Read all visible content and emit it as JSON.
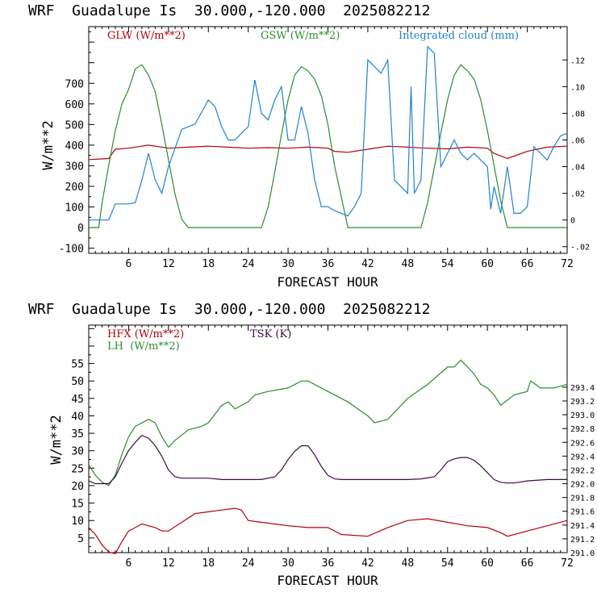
{
  "chart_data": [
    {
      "type": "line",
      "title": "WRF  Guadalupe Is  30.000,-120.000  2025082212",
      "xlabel": "FORECAST HOUR",
      "ylabel": "W/m**2",
      "xlim": [
        0,
        72
      ],
      "x_ticks": [
        "6",
        "12",
        "18",
        "24",
        "30",
        "36",
        "42",
        "48",
        "54",
        "60",
        "66",
        "72"
      ],
      "ylim": [
        -125,
        975
      ],
      "y_ticks": [
        "-100",
        "0",
        "100",
        "200",
        "300",
        "400",
        "500",
        "600",
        "700"
      ],
      "ylim_right": [
        -0.025,
        0.145
      ],
      "y_right_ticks": [
        "-.02",
        "0",
        ".02",
        ".04",
        ".06",
        ".08",
        ".10",
        ".12"
      ],
      "series": [
        {
          "name": "GLW (W/m**2)",
          "axis": "left",
          "color": "#b3000c",
          "x": [
            0,
            3,
            4,
            6,
            8,
            9,
            12,
            15,
            18,
            21,
            24,
            27,
            30,
            33,
            36,
            37,
            39,
            42,
            45,
            48,
            51,
            54,
            57,
            60,
            61,
            63,
            66,
            69,
            72
          ],
          "y": [
            330,
            335,
            380,
            385,
            395,
            400,
            385,
            390,
            395,
            390,
            385,
            388,
            385,
            390,
            385,
            370,
            365,
            380,
            395,
            390,
            385,
            382,
            390,
            385,
            360,
            335,
            370,
            390,
            395
          ]
        },
        {
          "name": "GSW (W/m**2)",
          "axis": "left",
          "color": "#2e8b2e",
          "x": [
            0,
            1.5,
            2,
            3,
            4,
            5,
            6,
            7,
            8,
            9,
            10,
            11,
            12,
            13,
            14,
            15,
            26,
            27,
            28,
            29,
            30,
            31,
            32,
            33,
            34,
            35,
            36,
            37,
            38,
            39,
            50,
            51,
            52,
            53,
            54,
            55,
            56,
            57,
            58,
            59,
            60,
            61,
            62,
            63,
            72
          ],
          "y": [
            0,
            0,
            120,
            300,
            470,
            600,
            670,
            770,
            790,
            740,
            660,
            500,
            330,
            160,
            40,
            0,
            0,
            100,
            270,
            450,
            620,
            740,
            780,
            760,
            720,
            640,
            500,
            300,
            150,
            0,
            0,
            120,
            290,
            460,
            620,
            740,
            790,
            760,
            720,
            620,
            470,
            300,
            130,
            0,
            0
          ]
        },
        {
          "name": "Integrated cloud (mm)",
          "axis": "right",
          "color": "#1e82d2",
          "x": [
            0,
            3,
            4,
            5,
            6,
            7,
            8,
            9,
            10,
            11,
            12,
            14,
            16,
            18,
            19,
            20,
            21,
            22,
            23,
            24,
            25,
            26,
            27,
            28,
            29,
            30,
            31,
            32,
            33,
            34,
            35,
            36,
            37,
            38,
            39,
            40,
            41,
            42,
            43,
            44,
            45,
            46,
            47,
            48,
            48.5,
            49,
            50,
            51,
            52,
            53,
            54,
            55,
            56,
            57,
            58,
            59,
            60,
            60.5,
            61,
            62,
            63,
            64,
            65,
            66,
            67,
            68,
            69,
            70,
            71,
            72
          ],
          "y": [
            0,
            0,
            0.012,
            0.012,
            0.012,
            0.013,
            0.03,
            0.05,
            0.03,
            0.02,
            0.04,
            0.068,
            0.072,
            0.09,
            0.085,
            0.07,
            0.06,
            0.06,
            0.065,
            0.07,
            0.105,
            0.08,
            0.075,
            0.09,
            0.1,
            0.06,
            0.06,
            0.085,
            0.065,
            0.03,
            0.01,
            0.01,
            0.007,
            0.005,
            0.003,
            0.01,
            0.02,
            0.12,
            0.115,
            0.11,
            0.12,
            0.03,
            0.025,
            0.02,
            0.1,
            0.02,
            0.03,
            0.13,
            0.125,
            0.04,
            0.05,
            0.06,
            0.05,
            0.045,
            0.05,
            0.045,
            0.04,
            0.008,
            0.025,
            0.005,
            0.04,
            0.005,
            0.005,
            0.01,
            0.055,
            0.05,
            0.045,
            0.055,
            0.063,
            0.065
          ]
        }
      ]
    },
    {
      "type": "line",
      "title": "WRF  Guadalupe Is  30.000,-120.000  2025082212",
      "xlabel": "FORECAST HOUR",
      "ylabel": "W/m**2",
      "xlim": [
        0,
        72
      ],
      "x_ticks": [
        "6",
        "12",
        "18",
        "24",
        "30",
        "36",
        "42",
        "48",
        "54",
        "60",
        "66",
        "72"
      ],
      "ylim": [
        0.8,
        66
      ],
      "y_ticks": [
        "5",
        "10",
        "15",
        "20",
        "25",
        "30",
        "35",
        "40",
        "45",
        "50",
        "55"
      ],
      "ylim_right": [
        291.0,
        294.3
      ],
      "y_right_ticks": [
        "291.0",
        "291.2",
        "291.4",
        "291.6",
        "291.8",
        "292.0",
        "292.2",
        "292.4",
        "292.6",
        "292.8",
        "293.0",
        "293.2",
        "293.4"
      ],
      "series": [
        {
          "name": "HFX (W/m**2)",
          "axis": "left",
          "color": "#b3000c",
          "x": [
            0,
            1,
            2,
            3,
            4,
            5,
            6,
            7,
            8,
            9,
            10,
            11,
            12,
            14,
            16,
            18,
            20,
            22,
            23,
            24,
            26,
            28,
            30,
            33,
            36,
            38,
            42,
            45,
            48,
            51,
            54,
            57,
            60,
            62,
            63,
            66,
            69,
            72
          ],
          "y": [
            8,
            6,
            3,
            1,
            0.5,
            4,
            7,
            8,
            9,
            8.5,
            8,
            7,
            7,
            9.5,
            12,
            12.5,
            13,
            13.5,
            13,
            10,
            9.5,
            9,
            8.5,
            8,
            8,
            6,
            5.5,
            8,
            10,
            10.5,
            9.5,
            8.5,
            8,
            6.5,
            5.5,
            7,
            8.5,
            10
          ]
        },
        {
          "name": "LH  (W/m**2)",
          "axis": "left",
          "color": "#2e8b2e",
          "x": [
            0,
            1,
            2,
            3,
            4,
            5,
            6,
            7,
            8,
            9,
            10,
            11,
            12,
            13,
            15,
            17,
            18,
            20,
            21,
            22,
            24,
            25,
            27,
            30,
            32,
            33,
            36,
            39,
            42,
            43,
            45,
            46,
            48,
            51,
            54,
            55,
            56,
            58,
            59,
            60,
            61,
            62,
            64,
            66,
            66.5,
            68,
            70,
            72
          ],
          "y": [
            26,
            23,
            21,
            20,
            23,
            29,
            34,
            37,
            38,
            39,
            38,
            34,
            31,
            33,
            36,
            37,
            38,
            43,
            44,
            42,
            44,
            46,
            47,
            48,
            50,
            50,
            47,
            44,
            40,
            38,
            39,
            41,
            45,
            49,
            54,
            54,
            56,
            52,
            49,
            48,
            46,
            43,
            46,
            47,
            50,
            48,
            48,
            49
          ]
        },
        {
          "name": "TSK (K)",
          "axis": "right",
          "color": "#3c0a46",
          "x": [
            0,
            1,
            2,
            3,
            4,
            5,
            6,
            7,
            8,
            9,
            10,
            11,
            12,
            13,
            14,
            16,
            18,
            20,
            22,
            24,
            26,
            28,
            29,
            30,
            31,
            32,
            33,
            34,
            35,
            36,
            37,
            38,
            39,
            40,
            42,
            45,
            48,
            50,
            52,
            53,
            54,
            55,
            56,
            57,
            58,
            59,
            60,
            61,
            62,
            63,
            64,
            66,
            69,
            72
          ],
          "y": [
            292.04,
            292.0,
            292.0,
            292.0,
            292.1,
            292.3,
            292.48,
            292.6,
            292.7,
            292.66,
            292.55,
            292.4,
            292.2,
            292.1,
            292.08,
            292.08,
            292.08,
            292.06,
            292.06,
            292.06,
            292.06,
            292.1,
            292.2,
            292.35,
            292.47,
            292.55,
            292.55,
            292.42,
            292.25,
            292.12,
            292.07,
            292.06,
            292.06,
            292.06,
            292.06,
            292.06,
            292.06,
            292.07,
            292.1,
            292.2,
            292.32,
            292.36,
            292.38,
            292.38,
            292.34,
            292.26,
            292.16,
            292.06,
            292.02,
            292.01,
            292.01,
            292.04,
            292.06,
            292.06
          ]
        }
      ]
    }
  ]
}
